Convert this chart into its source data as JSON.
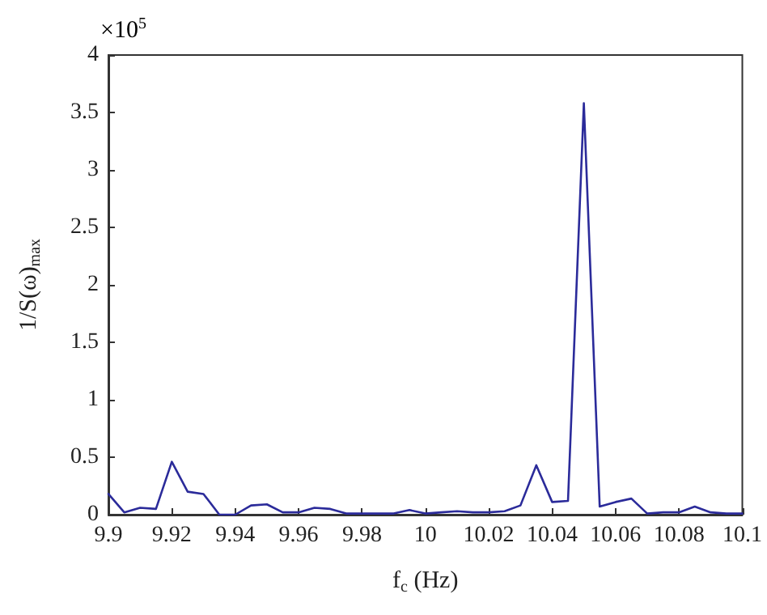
{
  "chart_data": {
    "type": "line",
    "xlabel": "f$_{c}$ (Hz)",
    "ylabel": "1/S(ω)$_{max}$",
    "annotations": [
      "×10$^{5}$"
    ],
    "x": [
      9.9,
      9.905,
      9.91,
      9.915,
      9.92,
      9.925,
      9.93,
      9.935,
      9.94,
      9.945,
      9.95,
      9.955,
      9.96,
      9.965,
      9.97,
      9.975,
      9.98,
      9.985,
      9.99,
      9.995,
      10,
      10.005,
      10.01,
      10.015,
      10.02,
      10.025,
      10.03,
      10.035,
      10.04,
      10.045,
      10.05,
      10.055,
      10.06,
      10.065,
      10.07,
      10.075,
      10.08,
      10.085,
      10.09,
      10.095,
      10.1
    ],
    "series": [
      {
        "color": "#2b2b9a",
        "values": [
          0.18,
          0.02,
          0.06,
          0.05,
          0.46,
          0.2,
          0.18,
          0.0,
          0.0,
          0.08,
          0.09,
          0.02,
          0.02,
          0.06,
          0.05,
          0.01,
          0.01,
          0.01,
          0.01,
          0.04,
          0.01,
          0.02,
          0.03,
          0.02,
          0.02,
          0.03,
          0.08,
          0.43,
          0.11,
          0.12,
          3.58,
          0.07,
          0.11,
          0.14,
          0.01,
          0.02,
          0.02,
          0.07,
          0.02,
          0.01,
          0.01
        ]
      }
    ],
    "xlim": [
      9.9,
      10.1
    ],
    "xticks": [
      9.9,
      9.92,
      9.94,
      9.96,
      9.98,
      10,
      10.02,
      10.04,
      10.06,
      10.08,
      10.1
    ],
    "ylim": [
      0,
      4
    ],
    "yticks": [
      0,
      0.5,
      1,
      1.5,
      2,
      2.5,
      3,
      3.5,
      4
    ],
    "grid": false,
    "marker": "none",
    "line_style": "solid"
  }
}
